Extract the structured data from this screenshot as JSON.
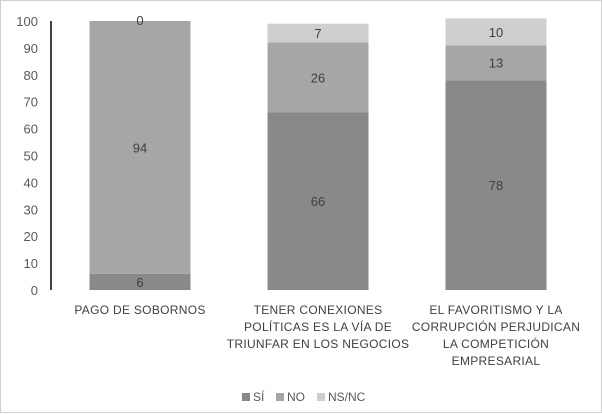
{
  "chart_data": {
    "type": "bar",
    "stacked": true,
    "categories": [
      [
        "PAGO DE SOBORNOS"
      ],
      [
        "TENER CONEXIONES",
        "POLÍTICAS ES LA VÍA DE",
        "TRIUNFAR EN LOS NEGOCIOS"
      ],
      [
        "EL FAVORITISMO Y LA",
        "CORRUPCIÓN PERJUDICAN",
        "LA COMPETICIÓN",
        "EMPRESARIAL"
      ]
    ],
    "series": [
      {
        "name": "SÍ",
        "color": "#898989",
        "values": [
          6,
          66,
          78
        ]
      },
      {
        "name": "NO",
        "color": "#a6a6a6",
        "values": [
          94,
          26,
          13
        ]
      },
      {
        "name": "NS/NC",
        "color": "#cfcfcf",
        "values": [
          0,
          7,
          10
        ]
      }
    ],
    "yticks": [
      0,
      10,
      20,
      30,
      40,
      50,
      60,
      70,
      80,
      90,
      100
    ],
    "ylim": [
      0,
      100
    ],
    "grid": false,
    "legend_position": "bottom"
  }
}
